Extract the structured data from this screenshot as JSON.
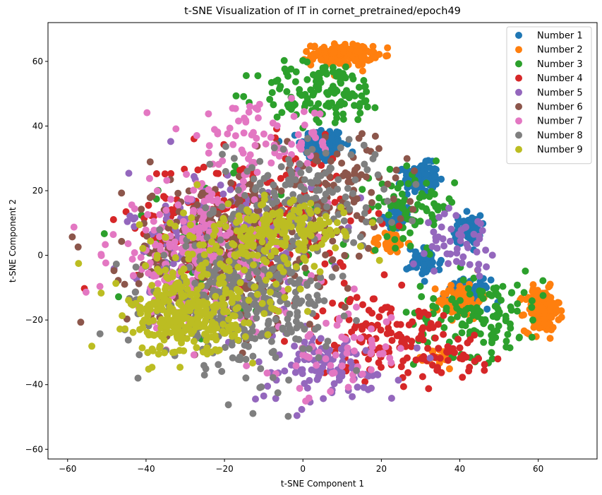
{
  "chart_data": {
    "type": "scatter",
    "title": "t-SNE Visualization of IT in cornet_pretrained/epoch49",
    "xlabel": "t-SNE Component 1",
    "ylabel": "t-SNE Component 2",
    "xlim": [
      -65,
      75
    ],
    "ylim": [
      -63,
      72
    ],
    "xticks": [
      -60,
      -40,
      -20,
      0,
      20,
      40,
      60
    ],
    "yticks": [
      -60,
      -40,
      -20,
      0,
      20,
      40,
      60
    ],
    "xtick_labels": [
      "−60",
      "−40",
      "−20",
      "0",
      "20",
      "40",
      "60"
    ],
    "ytick_labels": [
      "−60",
      "−40",
      "−20",
      "0",
      "20",
      "40",
      "60"
    ],
    "grid": false,
    "legend_position": "top-right",
    "series": [
      {
        "name": "Number 1",
        "color": "#1f77b4",
        "clusters": [
          {
            "center": [
              5,
              34
            ],
            "spread": [
              5,
              5
            ],
            "count": 150
          },
          {
            "center": [
              30,
              24
            ],
            "spread": [
              4,
              4
            ],
            "count": 120
          },
          {
            "center": [
              24,
              11
            ],
            "spread": [
              3,
              3
            ],
            "count": 60
          },
          {
            "center": [
              42,
              8
            ],
            "spread": [
              3,
              4
            ],
            "count": 70
          },
          {
            "center": [
              42,
              -12
            ],
            "spread": [
              5,
              4
            ],
            "count": 80
          },
          {
            "center": [
              31,
              -2
            ],
            "spread": [
              4,
              4
            ],
            "count": 50
          }
        ]
      },
      {
        "name": "Number 2",
        "color": "#ff7f0e",
        "clusters": [
          {
            "center": [
              10,
              62
            ],
            "spread": [
              7,
              3
            ],
            "count": 160
          },
          {
            "center": [
              61,
              -17
            ],
            "spread": [
              4,
              6
            ],
            "count": 170
          },
          {
            "center": [
              40,
              -14
            ],
            "spread": [
              5,
              5
            ],
            "count": 70
          },
          {
            "center": [
              22,
              4
            ],
            "spread": [
              4,
              3
            ],
            "count": 40
          },
          {
            "center": [
              35,
              -32
            ],
            "spread": [
              3,
              3
            ],
            "count": 20
          }
        ]
      },
      {
        "name": "Number 3",
        "color": "#2ca02c",
        "clusters": [
          {
            "center": [
              5,
              50
            ],
            "spread": [
              15,
              9
            ],
            "count": 130
          },
          {
            "center": [
              45,
              -18
            ],
            "spread": [
              15,
              12
            ],
            "count": 130
          },
          {
            "center": [
              28,
              15
            ],
            "spread": [
              10,
              10
            ],
            "count": 80
          },
          {
            "center": [
              -20,
              0
            ],
            "spread": [
              25,
              20
            ],
            "count": 80
          }
        ]
      },
      {
        "name": "Number 4",
        "color": "#d62728",
        "clusters": [
          {
            "center": [
              -15,
              10
            ],
            "spread": [
              25,
              20
            ],
            "count": 250
          },
          {
            "center": [
              20,
              -25
            ],
            "spread": [
              15,
              12
            ],
            "count": 130
          },
          {
            "center": [
              40,
              -30
            ],
            "spread": [
              8,
              6
            ],
            "count": 30
          }
        ]
      },
      {
        "name": "Number 5",
        "color": "#9467bd",
        "clusters": [
          {
            "center": [
              -20,
              5
            ],
            "spread": [
              22,
              20
            ],
            "count": 200
          },
          {
            "center": [
              5,
              -35
            ],
            "spread": [
              18,
              10
            ],
            "count": 100
          },
          {
            "center": [
              40,
              5
            ],
            "spread": [
              8,
              8
            ],
            "count": 50
          }
        ]
      },
      {
        "name": "Number 6",
        "color": "#8c564b",
        "clusters": [
          {
            "center": [
              -20,
              0
            ],
            "spread": [
              22,
              22
            ],
            "count": 330
          },
          {
            "center": [
              10,
              20
            ],
            "spread": [
              15,
              15
            ],
            "count": 90
          }
        ]
      },
      {
        "name": "Number 7",
        "color": "#e377c2",
        "clusters": [
          {
            "center": [
              -25,
              0
            ],
            "spread": [
              22,
              20
            ],
            "count": 300
          },
          {
            "center": [
              -10,
              35
            ],
            "spread": [
              18,
              10
            ],
            "count": 80
          },
          {
            "center": [
              10,
              -30
            ],
            "spread": [
              15,
              12
            ],
            "count": 60
          }
        ]
      },
      {
        "name": "Number 8",
        "color": "#7f7f7f",
        "clusters": [
          {
            "center": [
              -15,
              -15
            ],
            "spread": [
              20,
              18
            ],
            "count": 350
          },
          {
            "center": [
              0,
              20
            ],
            "spread": [
              20,
              15
            ],
            "count": 150
          }
        ]
      },
      {
        "name": "Number 9",
        "color": "#bcbd22",
        "clusters": [
          {
            "center": [
              -30,
              -20
            ],
            "spread": [
              12,
              10
            ],
            "count": 260
          },
          {
            "center": [
              -5,
              8
            ],
            "spread": [
              14,
              7
            ],
            "count": 150
          },
          {
            "center": [
              -20,
              -5
            ],
            "spread": [
              22,
              18
            ],
            "count": 150
          }
        ]
      }
    ]
  }
}
